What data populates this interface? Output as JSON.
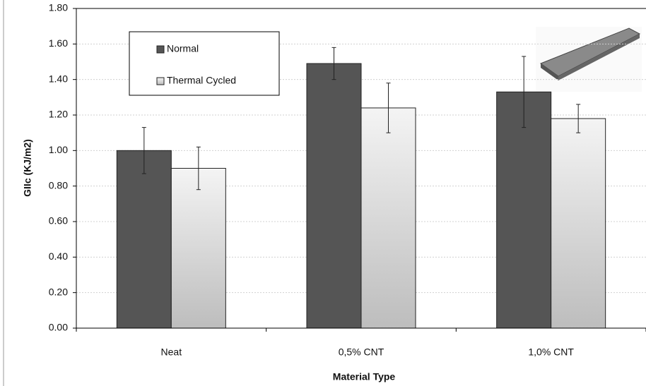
{
  "chart_data": {
    "type": "bar",
    "x_label": "Material Type",
    "y_label": "GIIc  (KJ/m2)",
    "categories": [
      "Neat",
      "0,5% CNT",
      "1,0% CNT"
    ],
    "series": [
      {
        "name": "Normal",
        "color": "#555555",
        "values": [
          1.0,
          1.49,
          1.33
        ],
        "errors": [
          0.13,
          0.09,
          0.2
        ]
      },
      {
        "name": "Thermal Cycled",
        "color": "#e6e6e6",
        "values": [
          0.9,
          1.24,
          1.18
        ],
        "errors": [
          0.12,
          0.14,
          0.08
        ]
      }
    ],
    "ylim": [
      0,
      1.8
    ],
    "yticks": [
      {
        "value": 0,
        "label": "0.00"
      },
      {
        "value": 0.2,
        "label": "0.20"
      },
      {
        "value": 0.4,
        "label": "0.40"
      },
      {
        "value": 0.6,
        "label": "0.60"
      },
      {
        "value": 0.8,
        "label": "0.80"
      },
      {
        "value": 1.0,
        "label": "1.00"
      },
      {
        "value": 1.2,
        "label": "1.20"
      },
      {
        "value": 1.4,
        "label": "1.40"
      },
      {
        "value": 1.6,
        "label": "1.60"
      },
      {
        "value": 1.8,
        "label": "1.80"
      }
    ],
    "grid": true,
    "legend": "top-left"
  }
}
